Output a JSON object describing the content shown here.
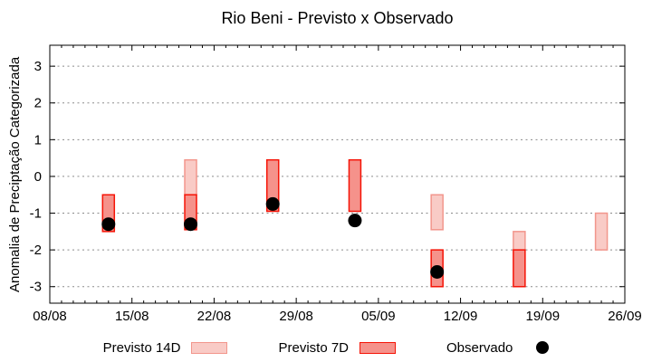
{
  "chart_data": {
    "type": "bar",
    "subtype": "range-bars-with-points",
    "title": "Rio Beni - Previsto x Observado",
    "xlabel": "",
    "ylabel": "Anomalia de Preciptação Categorizada",
    "x_axis": {
      "tick_labels": [
        "08/08",
        "15/08",
        "22/08",
        "29/08",
        "05/09",
        "12/09",
        "19/09",
        "26/09"
      ],
      "major_tick_interval_days": 7,
      "minor_tick_interval_days": 1,
      "days_span": 49
    },
    "y_axis": {
      "ticks": [
        -3,
        -2,
        -1,
        0,
        1,
        2,
        3
      ],
      "range": [
        -3.45,
        3.57
      ],
      "grid": "dotted"
    },
    "colors": {
      "grid": "#8a8a8a",
      "axis": "#000000",
      "previsto14d_fill": "#f9cbc6",
      "previsto14d_border": "#f2968c",
      "previsto7d_fill": "#f5928b",
      "previsto7d_border": "#f51407",
      "observado": "#000000"
    },
    "legend_position": "bottom-center",
    "series": [
      {
        "name": "Previsto 14D",
        "kind": "range-bar",
        "bars": [
          {
            "date": "20/08",
            "day": 12,
            "from": -0.5,
            "to": 0.45
          },
          {
            "date": "10/09",
            "day": 33,
            "from": -1.45,
            "to": -0.5
          },
          {
            "date": "17/09",
            "day": 40,
            "from": -2.0,
            "to": -1.5
          },
          {
            "date": "24/09",
            "day": 47,
            "from": -2.0,
            "to": -1.0
          }
        ]
      },
      {
        "name": "Previsto 7D",
        "kind": "range-bar",
        "bars": [
          {
            "date": "13/08",
            "day": 5,
            "from": -1.5,
            "to": -0.5
          },
          {
            "date": "20/08",
            "day": 12,
            "from": -1.45,
            "to": -0.5
          },
          {
            "date": "27/08",
            "day": 19,
            "from": -0.95,
            "to": 0.45
          },
          {
            "date": "03/09",
            "day": 26,
            "from": -0.95,
            "to": 0.45
          },
          {
            "date": "10/09",
            "day": 33,
            "from": -3.0,
            "to": -2.0
          },
          {
            "date": "17/09",
            "day": 40,
            "from": -3.0,
            "to": -2.0
          }
        ]
      },
      {
        "name": "Observado",
        "kind": "points",
        "points": [
          {
            "date": "13/08",
            "day": 5,
            "value": -1.3
          },
          {
            "date": "20/08",
            "day": 12,
            "value": -1.3
          },
          {
            "date": "27/08",
            "day": 19,
            "value": -0.75
          },
          {
            "date": "03/09",
            "day": 26,
            "value": -1.2
          },
          {
            "date": "10/09",
            "day": 33,
            "value": -2.6
          }
        ]
      }
    ]
  }
}
